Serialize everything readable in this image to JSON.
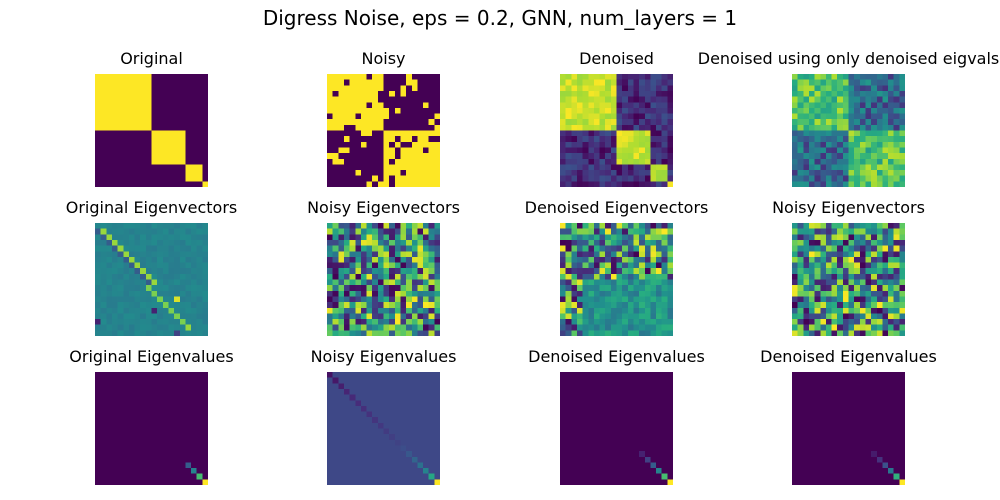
{
  "figure_title": "Digress Noise, eps = 0.2, GNN, num_layers = 1",
  "chart_data": {
    "type": "heatmap",
    "colormap": "viridis",
    "axes": "off",
    "grid_size": 20,
    "rows": 3,
    "columns": 4,
    "panels": [
      {
        "title": "Original",
        "kind": "block_adjacency",
        "blocks": [
          10,
          6,
          3,
          1
        ]
      },
      {
        "title": "Noisy",
        "kind": "noisy_adjacency",
        "blocks": [
          10,
          10
        ],
        "flip_probability": 0.2
      },
      {
        "title": "Denoised",
        "kind": "denoised_adjacency",
        "blocks": [
          10,
          6,
          3,
          1
        ]
      },
      {
        "title": "Denoised using only denoised eigvals",
        "kind": "soft_adjacency",
        "blocks": [
          10,
          10
        ]
      },
      {
        "title": "Original Eigenvectors",
        "kind": "structured_eigenvectors"
      },
      {
        "title": "Noisy Eigenvectors",
        "kind": "random_eigenvectors"
      },
      {
        "title": "Denoised Eigenvectors",
        "kind": "mixed_eigenvectors"
      },
      {
        "title": "Noisy Eigenvectors",
        "kind": "random_eigenvectors"
      },
      {
        "title": "Original Eigenvalues",
        "kind": "eigenvalue_diagonal",
        "tail_diagonal": [
          0.3,
          0.45,
          0.7,
          1.0
        ]
      },
      {
        "title": "Noisy Eigenvalues",
        "kind": "eigenvalue_diagonal",
        "background": 0.22,
        "full_diagonal": [
          0.05,
          0.07,
          0.09,
          0.11,
          0.12,
          0.13,
          0.14,
          0.15,
          0.16,
          0.17,
          0.18,
          0.19,
          0.2,
          0.24,
          0.28,
          0.33,
          0.38,
          0.45,
          0.6,
          1.0
        ]
      },
      {
        "title": "Denoised Eigenvalues",
        "kind": "eigenvalue_diagonal",
        "tail_diagonal": [
          0.1,
          0.2,
          0.3,
          0.45,
          0.7,
          1.0
        ]
      },
      {
        "title": "Denoised Eigenvalues",
        "kind": "eigenvalue_diagonal",
        "tail_diagonal": [
          0.08,
          0.15,
          0.25,
          0.4,
          0.65,
          1.0
        ]
      }
    ]
  }
}
